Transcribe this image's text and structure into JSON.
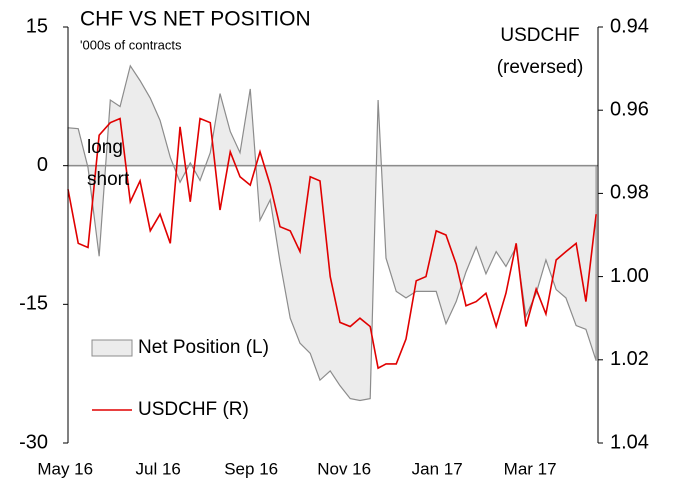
{
  "chart_data": {
    "type": "area_line",
    "title": "CHF VS NET POSITION",
    "subtitle": "'000s of contracts",
    "y2_label_lines": [
      "USDCHF",
      "(reversed)"
    ],
    "annotations": [
      "long",
      "short"
    ],
    "x": [
      0.06,
      0.28,
      0.49,
      0.73,
      0.97,
      1.18,
      1.4,
      1.61,
      1.83,
      2.04,
      2.26,
      2.47,
      2.69,
      2.9,
      3.12,
      3.33,
      3.55,
      3.76,
      3.98,
      4.19,
      4.41,
      4.62,
      4.84,
      5.05,
      5.27,
      5.48,
      5.7,
      5.91,
      6.13,
      6.34,
      6.56,
      6.73,
      6.9,
      7.12,
      7.33,
      7.55,
      7.76,
      7.98,
      8.19,
      8.41,
      8.62,
      8.84,
      9.05,
      9.27,
      9.48,
      9.7,
      9.91,
      10.13,
      10.34,
      10.56,
      10.77,
      10.99,
      11.2,
      11.42
    ],
    "xlim": [
      0.06,
      11.46
    ],
    "xticks": [
      {
        "value": 0,
        "label": "May 16"
      },
      {
        "value": 2,
        "label": "Jul 16"
      },
      {
        "value": 4,
        "label": "Sep 16"
      },
      {
        "value": 6,
        "label": "Nov 16"
      },
      {
        "value": 8,
        "label": "Jan 17"
      },
      {
        "value": 10,
        "label": "Mar 17"
      }
    ],
    "ylim": [
      -30,
      15
    ],
    "yticks": [
      15,
      0,
      -15,
      -30
    ],
    "y2lim": [
      0.94,
      1.04
    ],
    "y2_reversed": true,
    "y2ticks": [
      0.94,
      0.96,
      0.98,
      {
        "value": 1,
        "label": "1.00"
      },
      1.02,
      1.04
    ],
    "legend": "lower left",
    "series": [
      {
        "name": "Net Position (L)",
        "kind": "area",
        "color": "#ececec",
        "edge_color": "#8c8c8c",
        "values": [
          4.1,
          4.0,
          -0.2,
          -9.8,
          7.1,
          6.4,
          10.8,
          9.2,
          7.3,
          4.9,
          0.9,
          -1.8,
          0.3,
          -1.6,
          1.4,
          7.8,
          3.7,
          1.4,
          8.3,
          -5.9,
          -3.7,
          -10.4,
          -16.5,
          -19.2,
          -20.3,
          -23.2,
          -22.2,
          -23.8,
          -25.2,
          -25.4,
          -25.2,
          7.1,
          -10.0,
          -13.6,
          -14.3,
          -13.6,
          -13.6,
          -13.6,
          -17.1,
          -14.7,
          -11.5,
          -8.8,
          -11.7,
          -9.3,
          -10.9,
          -8.8,
          -16.3,
          -13.8,
          -10.2,
          -13.4,
          -14.3,
          -17.3,
          -17.7,
          -21.1
        ]
      },
      {
        "name": "USDCHF (R)",
        "kind": "line",
        "axis": "y2",
        "color": "#e00000",
        "values": [
          0.979,
          0.992,
          0.993,
          0.966,
          0.963,
          0.962,
          0.982,
          0.977,
          0.989,
          0.985,
          0.992,
          0.964,
          0.982,
          0.962,
          0.963,
          0.984,
          0.97,
          0.976,
          0.978,
          0.97,
          0.978,
          0.988,
          0.989,
          0.994,
          0.976,
          0.977,
          1.0,
          1.011,
          1.012,
          1.01,
          1.012,
          1.022,
          1.021,
          1.021,
          1.015,
          1.001,
          1.0,
          0.989,
          0.99,
          0.997,
          1.007,
          1.006,
          1.004,
          1.012,
          1.004,
          0.992,
          1.012,
          1.003,
          1.009,
          0.996,
          0.994,
          0.992,
          1.006,
          0.985
        ]
      }
    ]
  }
}
